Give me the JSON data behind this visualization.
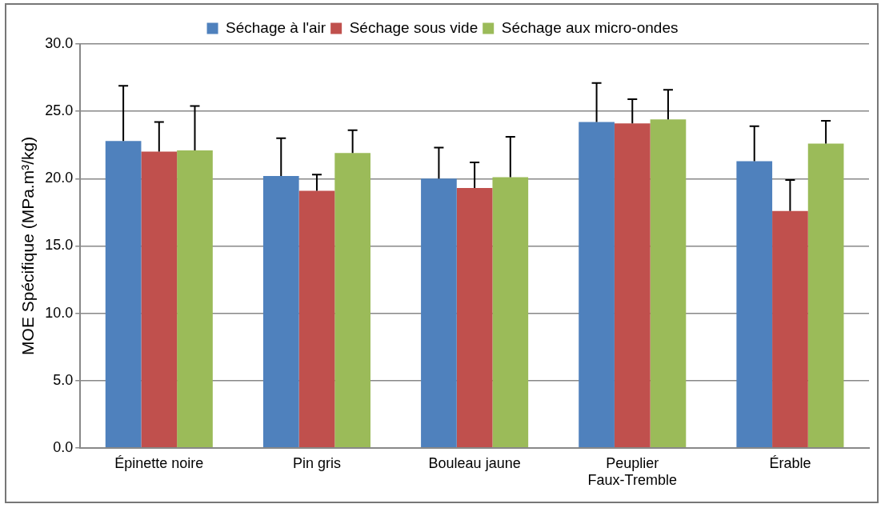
{
  "chart_data": {
    "type": "bar",
    "ylabel": "MOE Spécifique (MPa.m³/kg)",
    "categories": [
      "Épinette noire",
      "Pin gris",
      "Bouleau jaune",
      "Peuplier Faux-Tremble",
      "Érable"
    ],
    "series": [
      {
        "name": "Séchage à l'air",
        "color": "#4f81bd",
        "values": [
          22.8,
          20.2,
          20.0,
          24.2,
          21.3
        ],
        "errors": [
          [
            22.8,
            26.9
          ],
          [
            20.2,
            23.0
          ],
          [
            20.0,
            22.3
          ],
          [
            24.2,
            27.1
          ],
          [
            21.3,
            23.9
          ]
        ]
      },
      {
        "name": "Séchage sous vide",
        "color": "#c0504d",
        "values": [
          22.0,
          19.1,
          19.3,
          24.1,
          17.6
        ],
        "errors": [
          [
            22.0,
            24.2
          ],
          [
            19.1,
            20.3
          ],
          [
            19.3,
            21.2
          ],
          [
            24.1,
            25.9
          ],
          [
            17.6,
            19.9
          ]
        ]
      },
      {
        "name": "Séchage aux micro-ondes",
        "color": "#9bbb59",
        "values": [
          22.1,
          21.9,
          20.1,
          24.4,
          22.6
        ],
        "errors": [
          [
            22.1,
            25.4
          ],
          [
            21.9,
            23.6
          ],
          [
            20.1,
            23.1
          ],
          [
            24.4,
            26.6
          ],
          [
            22.6,
            24.3
          ]
        ]
      }
    ],
    "ylim": [
      0,
      30
    ],
    "yticks": [
      {
        "value": 0,
        "label": "0.0"
      },
      {
        "value": 5,
        "label": "5.0"
      },
      {
        "value": 10,
        "label": "10.0"
      },
      {
        "value": 15,
        "label": "15.0"
      },
      {
        "value": 20,
        "label": "20.0"
      },
      {
        "value": 25,
        "label": "25.0"
      },
      {
        "value": 30,
        "label": "30.0"
      }
    ],
    "grid": "y",
    "legend": "top"
  }
}
